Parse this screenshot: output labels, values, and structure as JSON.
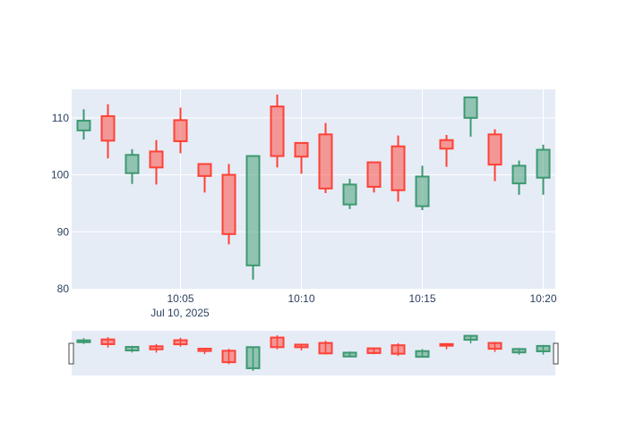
{
  "chart_data": {
    "type": "candlestick",
    "colors": {
      "increasing": "#3d9970",
      "increasing_fill": "rgba(61,153,112,0.5)",
      "decreasing": "#ff4136",
      "decreasing_fill": "rgba(255,65,54,0.5)",
      "plot_background": "#e5ecf6",
      "grid": "#ffffff",
      "tick_text": "#2a3f5f"
    },
    "title": "",
    "xlabel": "",
    "ylabel": "",
    "ylim": [
      80,
      115
    ],
    "y_ticks": [
      80,
      90,
      100,
      110
    ],
    "x_range": [
      "2025-07-10 10:00:30",
      "2025-07-10 10:20:30"
    ],
    "x_ticks": [
      "10:05",
      "10:10",
      "10:15",
      "10:20"
    ],
    "x_tick_sublabel": "Jul 10, 2025",
    "grid": true,
    "rangeslider": true,
    "candles": [
      {
        "t": "2025-07-10 10:01",
        "open": 107.8,
        "high": 111.5,
        "low": 106.2,
        "close": 109.5
      },
      {
        "t": "2025-07-10 10:02",
        "open": 110.3,
        "high": 112.4,
        "low": 102.9,
        "close": 106.0
      },
      {
        "t": "2025-07-10 10:03",
        "open": 100.3,
        "high": 104.5,
        "low": 98.4,
        "close": 103.5
      },
      {
        "t": "2025-07-10 10:04",
        "open": 104.1,
        "high": 106.1,
        "low": 98.3,
        "close": 101.3
      },
      {
        "t": "2025-07-10 10:05",
        "open": 109.6,
        "high": 111.8,
        "low": 103.8,
        "close": 105.9
      },
      {
        "t": "2025-07-10 10:06",
        "open": 101.9,
        "high": 101.9,
        "low": 96.9,
        "close": 99.8
      },
      {
        "t": "2025-07-10 10:07",
        "open": 100.0,
        "high": 101.9,
        "low": 87.8,
        "close": 89.6
      },
      {
        "t": "2025-07-10 10:08",
        "open": 84.1,
        "high": 103.3,
        "low": 81.6,
        "close": 103.3
      },
      {
        "t": "2025-07-10 10:09",
        "open": 112.0,
        "high": 114.1,
        "low": 101.3,
        "close": 103.3
      },
      {
        "t": "2025-07-10 10:10",
        "open": 105.6,
        "high": 105.6,
        "low": 100.2,
        "close": 103.2
      },
      {
        "t": "2025-07-10 10:11",
        "open": 107.1,
        "high": 109.1,
        "low": 96.8,
        "close": 97.6
      },
      {
        "t": "2025-07-10 10:12",
        "open": 94.8,
        "high": 99.3,
        "low": 94.0,
        "close": 98.3
      },
      {
        "t": "2025-07-10 10:13",
        "open": 102.2,
        "high": 102.2,
        "low": 96.9,
        "close": 97.9
      },
      {
        "t": "2025-07-10 10:14",
        "open": 105.0,
        "high": 106.9,
        "low": 95.3,
        "close": 97.3
      },
      {
        "t": "2025-07-10 10:15",
        "open": 94.5,
        "high": 101.6,
        "low": 93.8,
        "close": 99.7
      },
      {
        "t": "2025-07-10 10:16",
        "open": 106.1,
        "high": 107.0,
        "low": 101.4,
        "close": 104.6
      },
      {
        "t": "2025-07-10 10:17",
        "open": 110.0,
        "high": 113.6,
        "low": 106.7,
        "close": 113.6
      },
      {
        "t": "2025-07-10 10:18",
        "open": 107.1,
        "high": 108.0,
        "low": 98.9,
        "close": 101.8
      },
      {
        "t": "2025-07-10 10:19",
        "open": 98.5,
        "high": 102.5,
        "low": 96.5,
        "close": 101.6
      },
      {
        "t": "2025-07-10 10:20",
        "open": 99.5,
        "high": 105.3,
        "low": 96.5,
        "close": 104.4
      }
    ]
  }
}
